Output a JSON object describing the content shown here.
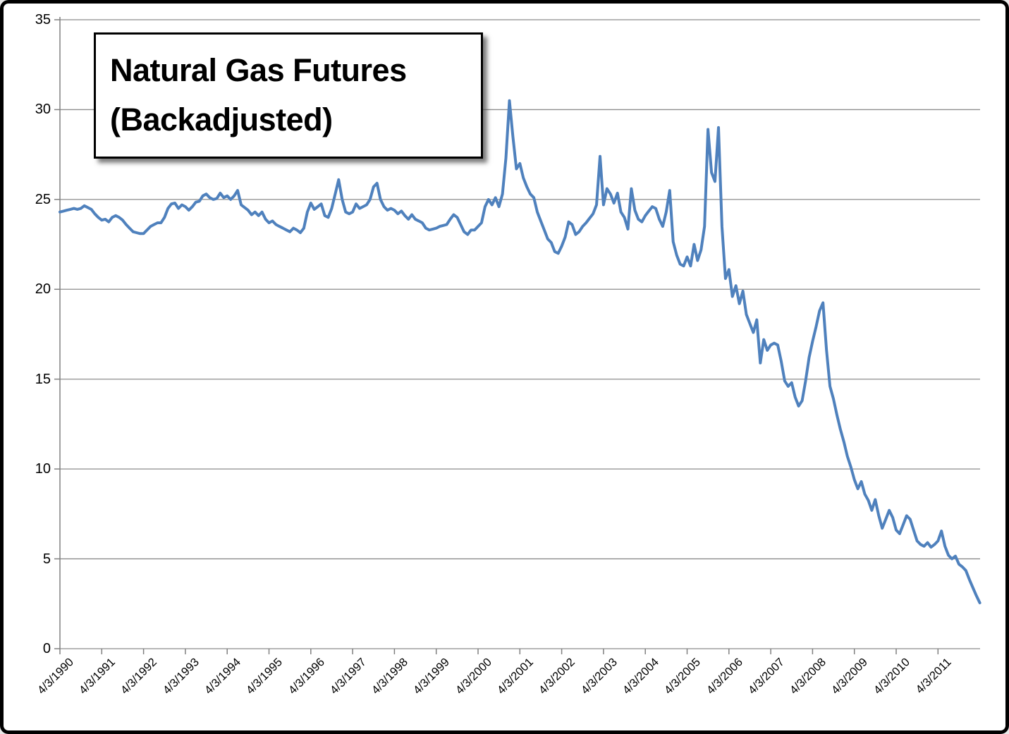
{
  "window": {
    "background": "#FFFFFF",
    "outer_border_color": "#000000"
  },
  "title_box": {
    "line1": "Natural Gas Futures",
    "line2": "(Backadjusted)"
  },
  "chart_data": {
    "type": "line",
    "title": "Natural Gas Futures (Backadjusted)",
    "title_lines": [
      "Natural Gas Futures",
      "(Backadjusted)"
    ],
    "xlabel": "",
    "ylabel": "",
    "ylim": [
      0,
      35
    ],
    "y_ticks": [
      0,
      5,
      10,
      15,
      20,
      25,
      30,
      35
    ],
    "x_tick_labels": [
      "4/3/1990",
      "4/3/1991",
      "4/3/1992",
      "4/3/1993",
      "4/3/1994",
      "4/3/1995",
      "4/3/1996",
      "4/3/1997",
      "4/3/1998",
      "4/3/1999",
      "4/3/2000",
      "4/3/2001",
      "4/3/2002",
      "4/3/2003",
      "4/3/2004",
      "4/3/2005",
      "4/3/2006",
      "4/3/2007",
      "4/3/2008",
      "4/3/2009",
      "4/3/2010",
      "4/3/2011"
    ],
    "grid": true,
    "legend": "none",
    "series": [
      {
        "name": "Natural Gas Futures (Backadjusted)",
        "start": "4/3/1990",
        "frequency": "monthly (approximated from daily curve)",
        "values": [
          24.3,
          24.35,
          24.4,
          24.45,
          24.5,
          24.45,
          24.5,
          24.65,
          24.55,
          24.45,
          24.2,
          24.0,
          23.85,
          23.9,
          23.75,
          24.0,
          24.1,
          24.0,
          23.85,
          23.6,
          23.4,
          23.2,
          23.15,
          23.1,
          23.1,
          23.3,
          23.5,
          23.6,
          23.7,
          23.7,
          24.0,
          24.5,
          24.75,
          24.8,
          24.5,
          24.7,
          24.6,
          24.4,
          24.6,
          24.85,
          24.9,
          25.2,
          25.3,
          25.1,
          25.0,
          25.05,
          25.35,
          25.1,
          25.2,
          25.0,
          25.2,
          25.5,
          24.7,
          24.55,
          24.4,
          24.15,
          24.3,
          24.1,
          24.3,
          23.9,
          23.7,
          23.8,
          23.6,
          23.5,
          23.4,
          23.3,
          23.2,
          23.4,
          23.3,
          23.15,
          23.4,
          24.3,
          24.8,
          24.45,
          24.6,
          24.75,
          24.1,
          24.0,
          24.5,
          25.3,
          26.1,
          25.0,
          24.3,
          24.2,
          24.3,
          24.75,
          24.5,
          24.6,
          24.7,
          25.0,
          25.7,
          25.9,
          25.0,
          24.6,
          24.4,
          24.5,
          24.4,
          24.2,
          24.35,
          24.1,
          23.9,
          24.15,
          23.9,
          23.8,
          23.7,
          23.4,
          23.3,
          23.35,
          23.4,
          23.5,
          23.55,
          23.6,
          23.9,
          24.15,
          24.0,
          23.6,
          23.2,
          23.05,
          23.3,
          23.3,
          23.5,
          23.7,
          24.6,
          25.0,
          24.7,
          25.1,
          24.6,
          25.3,
          27.3,
          30.5,
          28.5,
          26.7,
          27.0,
          26.2,
          25.7,
          25.3,
          25.1,
          24.3,
          23.8,
          23.3,
          22.8,
          22.6,
          22.1,
          22.0,
          22.4,
          22.9,
          23.75,
          23.6,
          23.05,
          23.2,
          23.5,
          23.7,
          23.95,
          24.2,
          24.7,
          27.4,
          24.7,
          25.6,
          25.3,
          24.8,
          25.35,
          24.3,
          24.0,
          23.35,
          25.6,
          24.4,
          23.9,
          23.75,
          24.1,
          24.35,
          24.6,
          24.5,
          23.9,
          23.5,
          24.3,
          25.5,
          22.65,
          21.9,
          21.4,
          21.3,
          21.8,
          21.3,
          22.5,
          21.6,
          22.2,
          23.5,
          28.9,
          26.5,
          26.0,
          29.0,
          23.5,
          20.6,
          21.1,
          19.6,
          20.2,
          19.2,
          19.9,
          18.6,
          18.1,
          17.6,
          18.3,
          15.9,
          17.2,
          16.6,
          16.9,
          17.0,
          16.9,
          16.0,
          14.9,
          14.6,
          14.8,
          14.0,
          13.5,
          13.8,
          14.9,
          16.2,
          17.1,
          17.9,
          18.8,
          19.25,
          16.6,
          14.6,
          13.9,
          13.0,
          12.2,
          11.5,
          10.7,
          10.1,
          9.4,
          8.9,
          9.3,
          8.6,
          8.25,
          7.7,
          8.3,
          7.4,
          6.7,
          7.2,
          7.7,
          7.3,
          6.6,
          6.4,
          6.9,
          7.4,
          7.2,
          6.6,
          6.0,
          5.8,
          5.7,
          5.9,
          5.65,
          5.8,
          6.0,
          6.55,
          5.7,
          5.2,
          5.0,
          5.15,
          4.7,
          4.55,
          4.35,
          3.85,
          3.4,
          2.95,
          2.55
        ]
      }
    ],
    "colors": {
      "line": "#4F81BD",
      "gridline": "#8C8C8C",
      "axis": "#808080",
      "text": "#000000",
      "title_text": "#000000",
      "title_box_bg": "#FFFFFF",
      "title_box_border": "#000000"
    }
  }
}
